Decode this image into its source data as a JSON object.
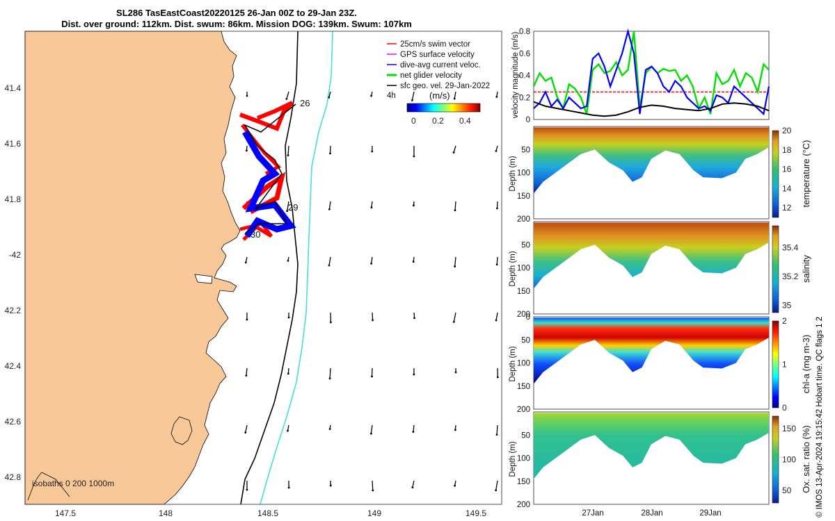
{
  "title_line1": "SL286 TasEastCoast20220125 26-Jan 00Z to 29-Jan 23Z.",
  "title_line2": "Dist. over ground: 112km. Dist. swum: 86km. Mission DOG: 139km. Swum: 107km",
  "credit": "© IMOS 13-Apr-2024 19:15:42 Hobart time. QC flags 1  2",
  "colors": {
    "land": "#f8c898",
    "swim": "#ff0000",
    "gps": "#ff00ff",
    "diveavg": "#0000ff",
    "net": "#00e000",
    "sfc": "#000000",
    "isobath200": "#000000",
    "isobath1000": "#40e0e0"
  },
  "map": {
    "lon_ticks": [
      "147.5",
      "148",
      "148.5",
      "149",
      "149.5"
    ],
    "lat_ticks": [
      "41.4",
      "41.6",
      "41.8",
      "-42",
      "42.2",
      "42.4",
      "42.6",
      "42.8"
    ],
    "legend": [
      "25cm/s swim vector",
      "GPS surface velocity",
      "dive-avg current veloc.",
      "net glider velocity",
      "sfc geo. vel. 29-Jan-2022"
    ],
    "legend_extra": "4h",
    "colorbar_title": "(m/s)",
    "colorbar_ticks": [
      "0",
      "0.2",
      "0.4"
    ],
    "day_labels": [
      "26",
      "29",
      "30"
    ],
    "isobaths_label": "isobaths  0   200  1000m"
  },
  "chart_data": [
    {
      "type": "line",
      "name": "velocity",
      "ylabel": "velocity magnitude (m/s)",
      "ylim": [
        0,
        0.8
      ],
      "yticks": [
        "0",
        "0.2",
        "0.4",
        "0.6",
        "0.8"
      ],
      "x_days": [
        26.0,
        29.99
      ],
      "reference_line": 0.25,
      "series": [
        {
          "name": "net glider velocity",
          "x": [
            26.0,
            26.1,
            26.2,
            26.3,
            26.4,
            26.5,
            26.6,
            26.7,
            26.8,
            26.9,
            27.0,
            27.1,
            27.2,
            27.3,
            27.4,
            27.5,
            27.6,
            27.7,
            27.8,
            27.9,
            28.0,
            28.1,
            28.2,
            28.3,
            28.4,
            28.5,
            28.6,
            28.7,
            28.8,
            28.9,
            29.0,
            29.1,
            29.2,
            29.3,
            29.4,
            29.5,
            29.6,
            29.7,
            29.8,
            29.9,
            29.99
          ],
          "values": [
            0.3,
            0.42,
            0.35,
            0.38,
            0.2,
            0.1,
            0.32,
            0.28,
            0.2,
            0.05,
            0.45,
            0.5,
            0.42,
            0.44,
            0.52,
            0.4,
            0.45,
            0.8,
            0.1,
            0.42,
            0.48,
            0.42,
            0.46,
            0.44,
            0.45,
            0.35,
            0.4,
            0.3,
            0.1,
            0.2,
            0.05,
            0.42,
            0.32,
            0.35,
            0.45,
            0.3,
            0.42,
            0.38,
            0.25,
            0.5,
            0.45
          ]
        },
        {
          "name": "dive-avg current veloc.",
          "x": [
            26.0,
            26.1,
            26.2,
            26.3,
            26.4,
            26.5,
            26.6,
            26.7,
            26.8,
            26.9,
            27.0,
            27.1,
            27.2,
            27.3,
            27.4,
            27.5,
            27.6,
            27.7,
            27.8,
            27.9,
            28.0,
            28.1,
            28.2,
            28.3,
            28.4,
            28.5,
            28.6,
            28.7,
            28.8,
            28.9,
            29.0,
            29.1,
            29.2,
            29.3,
            29.4,
            29.5,
            29.6,
            29.7,
            29.8,
            29.9,
            29.99
          ],
          "values": [
            0.1,
            0.15,
            0.25,
            0.12,
            0.18,
            0.1,
            0.2,
            0.15,
            0.1,
            0.12,
            0.55,
            0.6,
            0.48,
            0.3,
            0.45,
            0.6,
            0.8,
            0.6,
            0.05,
            0.45,
            0.48,
            0.42,
            0.3,
            0.25,
            0.35,
            0.3,
            0.2,
            0.15,
            0.1,
            0.12,
            0.08,
            0.22,
            0.2,
            0.15,
            0.3,
            0.25,
            0.2,
            0.15,
            0.1,
            0.05,
            0.3
          ]
        },
        {
          "name": "sfc geo. vel.",
          "x": [
            26.0,
            26.2,
            26.4,
            26.6,
            26.8,
            27.0,
            27.2,
            27.4,
            27.6,
            27.8,
            28.0,
            28.2,
            28.4,
            28.6,
            28.8,
            29.0,
            29.2,
            29.4,
            29.6,
            29.8,
            29.99
          ],
          "values": [
            0.16,
            0.12,
            0.1,
            0.08,
            0.06,
            0.04,
            0.03,
            0.04,
            0.07,
            0.11,
            0.13,
            0.12,
            0.1,
            0.09,
            0.08,
            0.1,
            0.14,
            0.15,
            0.14,
            0.12,
            0.08
          ]
        }
      ]
    },
    {
      "type": "heatmap",
      "name": "temperature",
      "ylabel": "Depth (m)",
      "ylim": [
        200,
        0
      ],
      "yticks": [
        "50",
        "100",
        "150",
        "200"
      ],
      "colorbar_label": "temperature (°C)",
      "colorbar_ticks": [
        "12",
        "14",
        "16",
        "18",
        "20"
      ],
      "clim": [
        11,
        20
      ]
    },
    {
      "type": "heatmap",
      "name": "salinity",
      "ylabel": "Depth (m)",
      "ylim": [
        200,
        0
      ],
      "yticks": [
        "50",
        "100",
        "150",
        "200"
      ],
      "colorbar_label": "salinity",
      "colorbar_ticks": [
        "35",
        "35.2",
        "35.4"
      ],
      "clim": [
        34.95,
        35.55
      ]
    },
    {
      "type": "heatmap",
      "name": "chl-a",
      "ylabel": "Depth (m)",
      "ylim": [
        200,
        0
      ],
      "yticks": [
        "0",
        "50",
        "100",
        "150",
        "200"
      ],
      "colorbar_label": "chl-a (mg m-3)",
      "colorbar_ticks": [
        "0",
        "1",
        "2"
      ],
      "clim": [
        0,
        2
      ]
    },
    {
      "type": "heatmap",
      "name": "oxygen",
      "ylabel": "Depth (m)",
      "ylim": [
        200,
        0
      ],
      "yticks": [
        "50",
        "100",
        "150",
        "200"
      ],
      "colorbar_label": "Ox. sat. ratio (%)",
      "colorbar_ticks": [
        "50",
        "100",
        "150"
      ],
      "clim": [
        30,
        170
      ],
      "xticks": [
        "27Jan",
        "28Jan",
        "29Jan"
      ]
    }
  ]
}
